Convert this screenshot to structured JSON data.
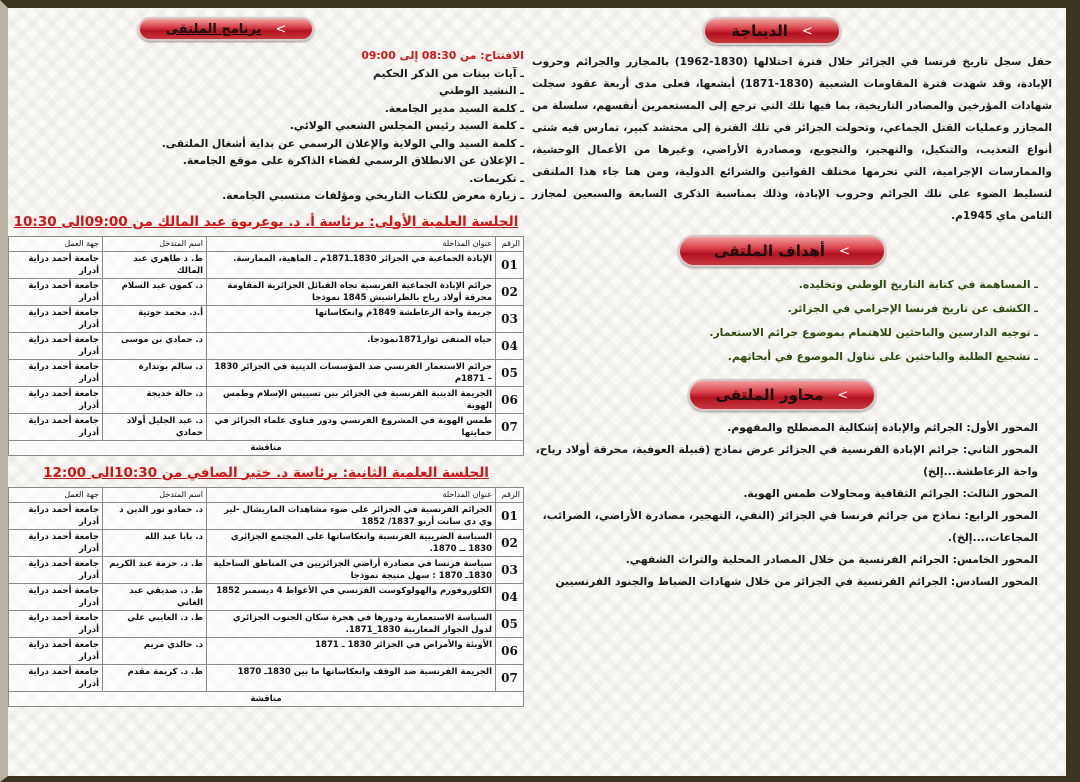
{
  "preamble": {
    "title": "الديباجة",
    "text": "حفل سجل تاريخ فرنسا في الجزائر خلال فترة احتلالها (1830-1962) بالمجازر والجرائم وحروب الإبادة، وقد شهدت فترة المقاومات الشعبية (1830-1871) أبشعها، فعلى مدى أربعة عقود سجلت شهادات المؤرخين والمصادر التاريخية، بما فيها تلك التي ترجع إلى المستعمرين أنفسهم، سلسلة من المجازر وعمليات القتل الجماعي، وتحولت الجزائر في تلك الفترة إلى محتشد كبير، تمارس فيه شتى أنواع التعذيب، والتنكيل، والتهجير، والتجويع، ومصادرة الأراضي، وغيرها من الأعمال الوحشية، والممارسات الإجرامية، التي تحرمها مختلف القوانين والشرائع الدولية، ومن هنا جاء هذا الملتقى لتسليط الضوء على تلك الجرائم وحروب الإبادة، وذلك بمناسبة الذكرى السابعة والسبعين لمجازر الثامن ماي 1945م."
  },
  "goals": {
    "title": "أهداف الملتقى",
    "items": [
      "ـ المساهمة في كتابة التاريخ الوطني وتخليده.",
      "ـ الكشف عن تاريخ فرنسا الإجرامي في الجزائر.",
      "ـ توجيه الدارسين والباحثين للاهتمام بموضوع جرائم الاستعمار.",
      "ـ تشجيع الطلبة والباحثين على تناول الموضوع في أبحاثهم."
    ]
  },
  "axes": {
    "title": "محاور الملتقى",
    "items": [
      "المحور الأول: الجرائم والإبادة إشكالية المصطلح والمفهوم.",
      "المحور الثاني: جرائم الإبادة الفرنسية في الجزائر عرض نماذج (قبيلة العوفية، محرقة أولاد رياح، واحة الزعاطشة...إلخ)",
      "المحور الثالث: الجرائم الثقافية ومحاولات طمس الهوية.",
      "المحور الرابع: نماذج من جرائم فرنسا في الجزائر (النفي، التهجير، مصادرة الأراضي، الضرائب، المجاعات،...إلخ).",
      "المحور الخامس: الجرائم الفرنسية من خلال المصادر المحلية والتراث الشفهي.",
      "المحور السادس: الجرائم الفرنسية في الجزائر من خلال شهادات الضباط والجنود الفرنسيين"
    ]
  },
  "program": {
    "title": "برنامج الملتقى",
    "opening": "الافتتاح: من 08:30 إلى 09:00",
    "items": [
      "ـ آيات بينات من الذكر الحكيم",
      "ـ النشيد الوطني",
      "ـ كلمة السيد مدير الجامعة.",
      "ـ كلمة السيد رئيس المجلس الشعبي الولائي.",
      "ـ كلمة السيد والي الولاية والإعلان الرسمي عن بداية أشغال الملتقى.",
      "ـ الإعلان عن الانطلاق الرسمي لفضاء الذاكرة على موقع الجامعة.",
      "ـ تكريمات.",
      "ـ زيارة معرض للكتاب التاريخي ومؤلفات منتسبي الجامعة."
    ]
  },
  "headers": {
    "num": "الرقم",
    "title": "عنوان المداخلة",
    "speaker": "اسم المتدخل",
    "inst": "جهة العمل"
  },
  "sessions": [
    {
      "title": "الجلسة العلمية الأولى:  برئاسة أ. د. بوعريوة عبد المالك من 09:00الى 10:30",
      "discussion": "مناقشة",
      "rows": [
        {
          "num": "01",
          "title": "الإبادة الجماعية في الجزائر 1830ـ1871م ـ الماهية، الممارسة.",
          "speaker": "ط. د طاهري عبد المالك",
          "inst": "جامعة أحمد دراية أدرار"
        },
        {
          "num": "02",
          "title": "جرائم الإبادة الجماعية الفرنسية تجاه القبائل الجزائرية المقاومة محرقة أولاد رياح بالظراشيش 1845 نموذجا",
          "speaker": "د. كمون عبد السلام",
          "inst": "جامعة أحمد دراية أدرار"
        },
        {
          "num": "03",
          "title": "جريمة واحة الزعاطشة 1849م وانعكاساتها",
          "speaker": "أ.د. محمد حوتية",
          "inst": "جامعة أحمد دراية أدرار"
        },
        {
          "num": "04",
          "title": "حياة المنفى  ثوار1871نموذجا.",
          "speaker": "د. حمادي بن موسى",
          "inst": "جامعة أحمد دراية أدرار"
        },
        {
          "num": "05",
          "title": "جرائم الاستعمار الفرنسي ضد المؤسسات الدينية في الجزائر 1830 – 1871م",
          "speaker": "د. سالم بوتدارة",
          "inst": "جامعة أحمد دراية أدرار"
        },
        {
          "num": "06",
          "title": "الجريمة الدينية الفرنسية في الجزائر بين تسييس الإسلام وطمس الهوية",
          "speaker": "د. حالة خديجة",
          "inst": "جامعة أحمد دراية أدرار"
        },
        {
          "num": "07",
          "title": "طمس الهوية في المشروع الفرنسي ودور فتاوى علماء الجزائر في حمايتها",
          "speaker": "د. عبد الجليل أولاد حمادي",
          "inst": "جامعة أحمد دراية أدرار"
        }
      ]
    },
    {
      "title": "الجلسة العلمية الثانية: برئاسة د. ختير الصافي من 10:30الى 12:00",
      "discussion": "مناقشة",
      "rows": [
        {
          "num": "01",
          "title": "الجرائم الفرنسية في الجزائر على ضوء مشاهدات الماريشال -لير وي دي سانت أرنو 1837/ 1852",
          "speaker": "د. حمادو نور الدين د",
          "inst": "جامعة أحمد دراية أدرار"
        },
        {
          "num": "02",
          "title": "السياسة الضريبية الفرنسية وانعكاساتها على المجتمع الجزائري 1830 ــ 1870.",
          "speaker": "د. بابا عبد الله",
          "inst": "جامعة أحمد دراية أدرار"
        },
        {
          "num": "03",
          "title": "سياسة فرنسا في مصادرة أراضي الجزائريين في المناطق الساحلية 1830ـ 1870 : سهل متيجة نموذجا",
          "speaker": "ط. د. حرمة عبد الكريم",
          "inst": "جامعة أحمد دراية أدرار"
        },
        {
          "num": "04",
          "title": "الكلوروفورم والهولوكوست الفرنسي في الأغواط 4 ديسمبر 1852",
          "speaker": "ط. د. صديقي عبد الغاني",
          "inst": "جامعة أحمد دراية أدرار"
        },
        {
          "num": "05",
          "title": "السياسة الاستعمارية ودورها في هجرة سكان الجنوب الجزائري لدول الجوار المغاربية 1830_1871.",
          "speaker": "ط. د. العايبي علي",
          "inst": "جامعة أحمد دراية أدرار"
        },
        {
          "num": "06",
          "title": "الأوبئة والأمراض في الجزائر 1830 ـ 1871",
          "speaker": "د. خالدي مريم",
          "inst": "جامعة أحمد دراية أدرار"
        },
        {
          "num": "07",
          "title": "الجريمة الفرنسية ضد الوقف وانعكاساتها ما بين 1830ـ 1870",
          "speaker": "ط. د. كريمة مقدم",
          "inst": "جامعة أحمد دراية أدرار"
        }
      ]
    }
  ],
  "colors": {
    "accent": "#d01515",
    "goals_text": "#2d4a12",
    "frame": "#3b3520"
  }
}
